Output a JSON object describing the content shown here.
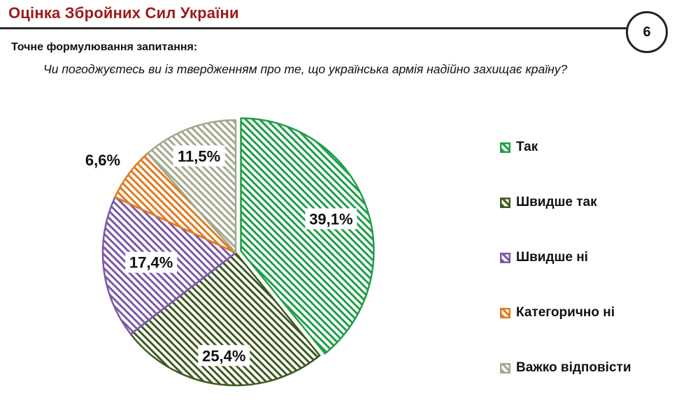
{
  "header": {
    "title": "Оцінка Збройних Сил України",
    "page_number": "6"
  },
  "question": {
    "label": "Точне формулювання запитання:",
    "text": "Чи погоджуєтесь ви із твердженням про те, що українська армія надійно захищає країну?"
  },
  "chart_data": {
    "type": "pie",
    "categories": [
      "Так",
      "Швидше так",
      "Швидше ні",
      "Категорично ні",
      "Важко відповісти"
    ],
    "values": [
      39.1,
      25.4,
      17.4,
      6.6,
      11.5
    ],
    "value_labels": [
      "39,1%",
      "25,4%",
      "17,4%",
      "6,6%",
      "11,5%"
    ],
    "colors": [
      "#1f9e49",
      "#3e5a1f",
      "#7a58a8",
      "#e07a1f",
      "#a1a98d"
    ],
    "pattern": "diagonal-hatch",
    "start": "12 o'clock, clockwise",
    "legend": "right"
  }
}
